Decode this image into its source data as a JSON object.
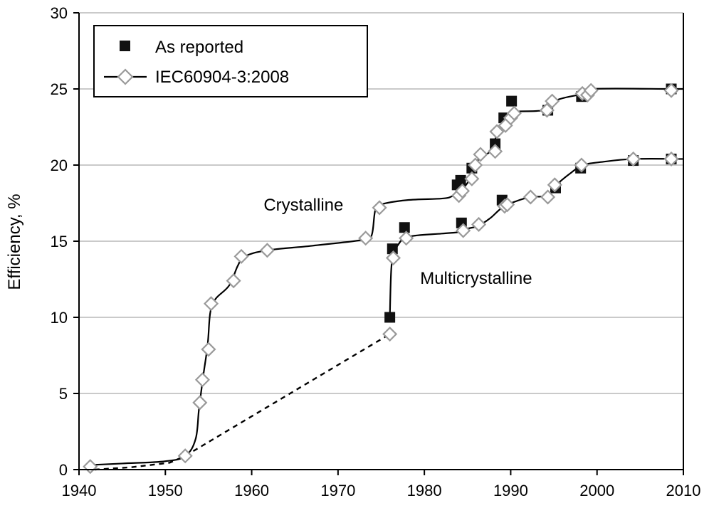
{
  "chart_data": {
    "type": "scatter",
    "title": "",
    "xlabel": "",
    "ylabel": "Efficiency, %",
    "xlim": [
      1940,
      2010
    ],
    "ylim": [
      0,
      30
    ],
    "x_ticks": [
      "1940",
      "1950",
      "1960",
      "1970",
      "1980",
      "1990",
      "2000",
      "2010"
    ],
    "y_ticks": [
      "0",
      "5",
      "10",
      "15",
      "20",
      "25",
      "30"
    ],
    "grid": "horizontal",
    "legend_position": "top-left",
    "legend": [
      {
        "label": "As reported",
        "marker": "filled-square"
      },
      {
        "label": "IEC60904-3:2008",
        "marker": "open-diamond-with-line"
      }
    ],
    "annotations": [
      {
        "text": "Crystalline",
        "x": 1966,
        "y": 17
      },
      {
        "text": "Multicrystalline",
        "x": 1986,
        "y": 12.2
      }
    ],
    "series": [
      {
        "name": "As reported",
        "points": [
          [
            1976,
            10.0
          ],
          [
            1976.3,
            14.5
          ],
          [
            1977.7,
            15.9
          ],
          [
            1984.3,
            16.2
          ],
          [
            1989.0,
            17.7
          ],
          [
            1983.8,
            18.7
          ],
          [
            1984.2,
            19.0
          ],
          [
            1985.5,
            19.8
          ],
          [
            1988.2,
            21.4
          ],
          [
            1989.2,
            23.1
          ],
          [
            1990.1,
            24.2
          ],
          [
            1994.3,
            23.6
          ],
          [
            1998.2,
            24.5
          ],
          [
            2008.6,
            25.0
          ],
          [
            1995.2,
            18.5
          ],
          [
            1998.1,
            19.8
          ],
          [
            2004.2,
            20.3
          ],
          [
            2008.6,
            20.4
          ]
        ]
      },
      {
        "name": "IEC60904-3:2008",
        "points": [
          [
            1941.3,
            0.2
          ],
          [
            1952.3,
            0.9
          ],
          [
            1954.0,
            4.4
          ],
          [
            1954.3,
            5.9
          ],
          [
            1955.0,
            7.9
          ],
          [
            1955.3,
            10.9
          ],
          [
            1957.9,
            12.4
          ],
          [
            1958.8,
            14.0
          ],
          [
            1961.8,
            14.4
          ],
          [
            1973.2,
            15.2
          ],
          [
            1974.8,
            17.2
          ],
          [
            1984.0,
            18.0
          ],
          [
            1984.4,
            18.3
          ],
          [
            1985.5,
            19.1
          ],
          [
            1985.9,
            20.0
          ],
          [
            1986.5,
            20.7
          ],
          [
            1988.2,
            20.9
          ],
          [
            1988.4,
            22.2
          ],
          [
            1989.4,
            22.6
          ],
          [
            1990.0,
            23.1
          ],
          [
            1990.4,
            23.4
          ],
          [
            1994.2,
            23.6
          ],
          [
            1994.8,
            24.2
          ],
          [
            1998.3,
            24.7
          ],
          [
            1998.9,
            24.6
          ],
          [
            1999.3,
            24.9
          ],
          [
            2008.6,
            24.9
          ],
          [
            1976.0,
            8.9
          ],
          [
            1976.4,
            13.9
          ],
          [
            1977.9,
            15.2
          ],
          [
            1984.5,
            15.7
          ],
          [
            1986.3,
            16.1
          ],
          [
            1989.3,
            17.3
          ],
          [
            1989.6,
            17.4
          ],
          [
            1992.3,
            17.9
          ],
          [
            1994.3,
            17.9
          ],
          [
            1995.1,
            18.7
          ],
          [
            1998.2,
            20.0
          ],
          [
            2004.2,
            20.4
          ],
          [
            2008.6,
            20.4
          ]
        ]
      }
    ],
    "trend_lines": [
      {
        "style": "solid",
        "points": [
          [
            1941.3,
            0.3
          ],
          [
            1945,
            0.4
          ],
          [
            1950,
            0.55
          ],
          [
            1952.3,
            0.9
          ],
          [
            1953.5,
            2.0
          ],
          [
            1953.9,
            4.0
          ],
          [
            1954.4,
            6.2
          ],
          [
            1954.9,
            8.2
          ],
          [
            1955.2,
            10.3
          ],
          [
            1955.8,
            11.2
          ],
          [
            1957.4,
            12.1
          ],
          [
            1958.4,
            13.4
          ],
          [
            1959.2,
            14.0
          ],
          [
            1961.8,
            14.4
          ],
          [
            1967,
            14.7
          ],
          [
            1973,
            15.1
          ],
          [
            1973.9,
            15.4
          ],
          [
            1974.3,
            17.0
          ],
          [
            1974.9,
            17.4
          ],
          [
            1978,
            17.7
          ],
          [
            1982,
            17.8
          ],
          [
            1983.2,
            17.95
          ],
          [
            1984.2,
            18.3
          ],
          [
            1985.3,
            19.1
          ],
          [
            1986.4,
            20.5
          ],
          [
            1987.6,
            20.9
          ],
          [
            1988.6,
            22.3
          ],
          [
            1989.4,
            23.2
          ],
          [
            1990.4,
            23.5
          ],
          [
            1993.0,
            23.55
          ],
          [
            1994.3,
            23.7
          ],
          [
            1995.5,
            24.3
          ],
          [
            1998.5,
            24.7
          ],
          [
            1999.3,
            25.0
          ],
          [
            2008.6,
            25.0
          ],
          [
            2010,
            25.0
          ]
        ]
      },
      {
        "style": "solid",
        "points": [
          [
            1976.0,
            10.0
          ],
          [
            1976.15,
            13.0
          ],
          [
            1976.4,
            14.0
          ],
          [
            1977.0,
            14.8
          ],
          [
            1978.2,
            15.3
          ],
          [
            1982,
            15.5
          ],
          [
            1984.0,
            15.6
          ],
          [
            1984.8,
            15.8
          ],
          [
            1986.2,
            16.0
          ],
          [
            1987.6,
            16.5
          ],
          [
            1989.0,
            17.2
          ],
          [
            1990.5,
            17.6
          ],
          [
            1992.3,
            17.9
          ],
          [
            1994.3,
            18.0
          ],
          [
            1995.3,
            18.7
          ],
          [
            1997.0,
            19.5
          ],
          [
            1998.4,
            20.0
          ],
          [
            2000.5,
            20.2
          ],
          [
            2004.2,
            20.4
          ],
          [
            2010,
            20.4
          ]
        ]
      },
      {
        "style": "dashed",
        "points": [
          [
            1941.8,
            0.0
          ],
          [
            1946,
            0.15
          ],
          [
            1950.5,
            0.45
          ],
          [
            1952.3,
            0.9
          ],
          [
            1976.0,
            8.9
          ]
        ]
      }
    ]
  }
}
